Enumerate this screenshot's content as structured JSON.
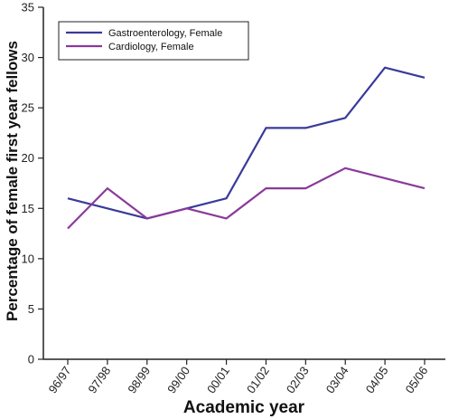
{
  "chart_data": {
    "type": "line",
    "xlabel": "Academic year",
    "ylabel": "Percentage of female first year fellows",
    "categories": [
      "96/97",
      "97/98",
      "98/99",
      "99/00",
      "00/01",
      "01/02",
      "02/03",
      "03/04",
      "04/05",
      "05/06"
    ],
    "ylim": [
      0,
      35
    ],
    "yticks": [
      0,
      5,
      10,
      15,
      20,
      25,
      30,
      35
    ],
    "grid": false,
    "legend_position": "top-left",
    "series": [
      {
        "name": "Gastroenterology, Female",
        "color": "#3a3a9a",
        "values": [
          16,
          15,
          14,
          15,
          16,
          23,
          23,
          24,
          29,
          28
        ]
      },
      {
        "name": "Cardiology, Female",
        "color": "#8a3a9a",
        "values": [
          13,
          17,
          14,
          15,
          14,
          17,
          17,
          19,
          18,
          17
        ]
      }
    ]
  }
}
